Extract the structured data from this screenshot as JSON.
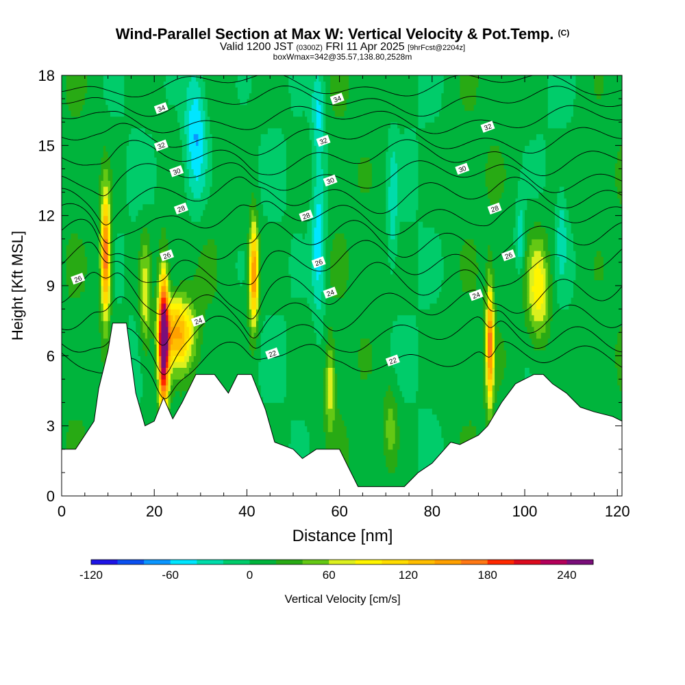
{
  "title": {
    "main": "Wind-Parallel Section at Max W: Vertical Velocity & Pot.Temp.",
    "copyright": "(C)",
    "valid_prefix": "Valid 1200 JST",
    "valid_utc": "(0300Z)",
    "valid_date": "FRI 11 Apr 2025",
    "forecast": "[9hrFcst@2204z]",
    "box_info": "boxWmax=342@35.57,138.80,2528m"
  },
  "chart_data": {
    "type": "heatmap",
    "xlabel": "Distance [nm]",
    "ylabel": "Height [Kft MSL]",
    "xlim": [
      0,
      121
    ],
    "ylim": [
      0,
      18
    ],
    "xticks": [
      0,
      20,
      40,
      60,
      80,
      100,
      120
    ],
    "yticks": [
      0,
      3,
      6,
      9,
      12,
      15,
      18
    ],
    "colorbar": {
      "label": "Vertical Velocity [cm/s]",
      "ticks": [
        -120,
        -60,
        0,
        60,
        120,
        180,
        240
      ],
      "levels": [
        -120,
        -100,
        -80,
        -60,
        -40,
        -20,
        0,
        20,
        40,
        60,
        80,
        100,
        120,
        140,
        160,
        180,
        200,
        220,
        240,
        260
      ],
      "colors": [
        "#1e14e6",
        "#0a50f0",
        "#0a96ff",
        "#00e6ff",
        "#00dcaa",
        "#00cc6a",
        "#00b43c",
        "#28aa14",
        "#64c814",
        "#dcf01e",
        "#fff500",
        "#ffdc00",
        "#ffbe00",
        "#ffa000",
        "#ff7814",
        "#ff2800",
        "#dc0a1e",
        "#b4005a",
        "#7a0e7a"
      ]
    },
    "terrain": [
      [
        0,
        2.0
      ],
      [
        3,
        2.0
      ],
      [
        5,
        2.6
      ],
      [
        7,
        3.2
      ],
      [
        8,
        4.6
      ],
      [
        10,
        6.2
      ],
      [
        11,
        7.4
      ],
      [
        14,
        7.4
      ],
      [
        16,
        4.4
      ],
      [
        18,
        3.0
      ],
      [
        20,
        3.2
      ],
      [
        22,
        4.2
      ],
      [
        24,
        3.3
      ],
      [
        26,
        4.0
      ],
      [
        29,
        5.2
      ],
      [
        33,
        5.2
      ],
      [
        36,
        4.4
      ],
      [
        38,
        5.2
      ],
      [
        41,
        5.2
      ],
      [
        44,
        3.7
      ],
      [
        46,
        2.3
      ],
      [
        50,
        2.0
      ],
      [
        52,
        1.6
      ],
      [
        55,
        2.0
      ],
      [
        60,
        2.0
      ],
      [
        62,
        1.2
      ],
      [
        64,
        0.4
      ],
      [
        74,
        0.4
      ],
      [
        77,
        1.0
      ],
      [
        80,
        1.4
      ],
      [
        84,
        2.3
      ],
      [
        86,
        2.2
      ],
      [
        88,
        2.4
      ],
      [
        90,
        2.6
      ],
      [
        92,
        3.0
      ],
      [
        95,
        4.0
      ],
      [
        98,
        4.8
      ],
      [
        102,
        5.2
      ],
      [
        104,
        5.2
      ],
      [
        106,
        4.8
      ],
      [
        109,
        4.4
      ],
      [
        112,
        3.8
      ],
      [
        115,
        3.6
      ],
      [
        119,
        3.4
      ],
      [
        121,
        3.2
      ]
    ],
    "updrafts": [
      {
        "x": 9.5,
        "z": 10.3,
        "peak": 180,
        "sx": 1.0,
        "sz": 2.6
      },
      {
        "x": 22,
        "z": 6.5,
        "peak": 250,
        "sx": 1.1,
        "sz": 3.0
      },
      {
        "x": 25,
        "z": 7.0,
        "peak": 130,
        "sx": 3.5,
        "sz": 1.5
      },
      {
        "x": 18,
        "z": 8.5,
        "peak": 70,
        "sx": 1.2,
        "sz": 2.5
      },
      {
        "x": 41.5,
        "z": 9.5,
        "peak": 160,
        "sx": 1.0,
        "sz": 2.2
      },
      {
        "x": 58,
        "z": 4.8,
        "peak": 70,
        "sx": 1.0,
        "sz": 1.8
      },
      {
        "x": 92.5,
        "z": 6.5,
        "peak": 160,
        "sx": 0.8,
        "sz": 2.5
      },
      {
        "x": 103,
        "z": 8.8,
        "peak": 90,
        "sx": 2.5,
        "sz": 2.3
      },
      {
        "x": 71,
        "z": 3.0,
        "peak": 45,
        "sx": 1.5,
        "sz": 1.8
      }
    ],
    "downdrafts": [
      {
        "x": 29,
        "z": 15.5,
        "peak": -75,
        "sx": 2.5,
        "sz": 3.0
      },
      {
        "x": 55.5,
        "z": 11.0,
        "peak": -65,
        "sx": 1.5,
        "sz": 3.5
      },
      {
        "x": 55.5,
        "z": 16.5,
        "peak": -50,
        "sx": 1.5,
        "sz": 1.8
      },
      {
        "x": 71.5,
        "z": 12.5,
        "peak": -40,
        "sx": 1.0,
        "sz": 2.5
      },
      {
        "x": 99,
        "z": 11.0,
        "peak": -50,
        "sx": 1.0,
        "sz": 1.5
      },
      {
        "x": 108,
        "z": 11.2,
        "peak": -35,
        "sx": 1.0,
        "sz": 1.8
      }
    ],
    "isentropes": [
      {
        "value": 22,
        "label": true,
        "base": 6.0,
        "bump": 0.4
      },
      {
        "value": 23,
        "label": false,
        "base": 7.0,
        "bump": 0.5
      },
      {
        "value": 24,
        "label": true,
        "base": 8.0,
        "bump": 0.6
      },
      {
        "value": 25,
        "label": false,
        "base": 9.0,
        "bump": 0.7
      },
      {
        "value": 26,
        "label": true,
        "base": 10.0,
        "bump": 0.6
      },
      {
        "value": 27,
        "label": false,
        "base": 11.0,
        "bump": 0.6
      },
      {
        "value": 28,
        "label": true,
        "base": 12.0,
        "bump": 0.5
      },
      {
        "value": 29,
        "label": false,
        "base": 12.9,
        "bump": 0.5
      },
      {
        "value": 30,
        "label": true,
        "base": 13.7,
        "bump": 0.4
      },
      {
        "value": 31,
        "label": false,
        "base": 14.5,
        "bump": 0.4
      },
      {
        "value": 32,
        "label": true,
        "base": 15.3,
        "bump": 0.35
      },
      {
        "value": 33,
        "label": false,
        "base": 16.1,
        "bump": 0.3
      },
      {
        "value": 34,
        "label": true,
        "base": 16.9,
        "bump": 0.3
      },
      {
        "value": 35,
        "label": false,
        "base": 17.6,
        "bump": 0.25
      }
    ],
    "isentrope_labels": [
      {
        "value": 34,
        "x": 21.5,
        "z": 16.6
      },
      {
        "value": 32,
        "x": 21.5,
        "z": 15.0
      },
      {
        "value": 30,
        "x": 24.8,
        "z": 13.9
      },
      {
        "value": 28,
        "x": 25.8,
        "z": 12.3
      },
      {
        "value": 26,
        "x": 22.7,
        "z": 10.3
      },
      {
        "value": 24,
        "x": 29.5,
        "z": 7.5
      },
      {
        "value": 26,
        "x": 3.5,
        "z": 9.3
      },
      {
        "value": 22,
        "x": 45.5,
        "z": 6.1
      },
      {
        "value": 28,
        "x": 52.8,
        "z": 12.0
      },
      {
        "value": 26,
        "x": 55.5,
        "z": 10.0
      },
      {
        "value": 24,
        "x": 58.0,
        "z": 8.7
      },
      {
        "value": 30,
        "x": 58.0,
        "z": 13.5
      },
      {
        "value": 32,
        "x": 56.5,
        "z": 15.2
      },
      {
        "value": 34,
        "x": 59.5,
        "z": 17.0
      },
      {
        "value": 22,
        "x": 71.5,
        "z": 5.8
      },
      {
        "value": 24,
        "x": 89.5,
        "z": 8.6
      },
      {
        "value": 26,
        "x": 96.5,
        "z": 10.3
      },
      {
        "value": 28,
        "x": 93.5,
        "z": 12.3
      },
      {
        "value": 30,
        "x": 86.5,
        "z": 14.0
      },
      {
        "value": 32,
        "x": 92.0,
        "z": 15.8
      }
    ]
  }
}
